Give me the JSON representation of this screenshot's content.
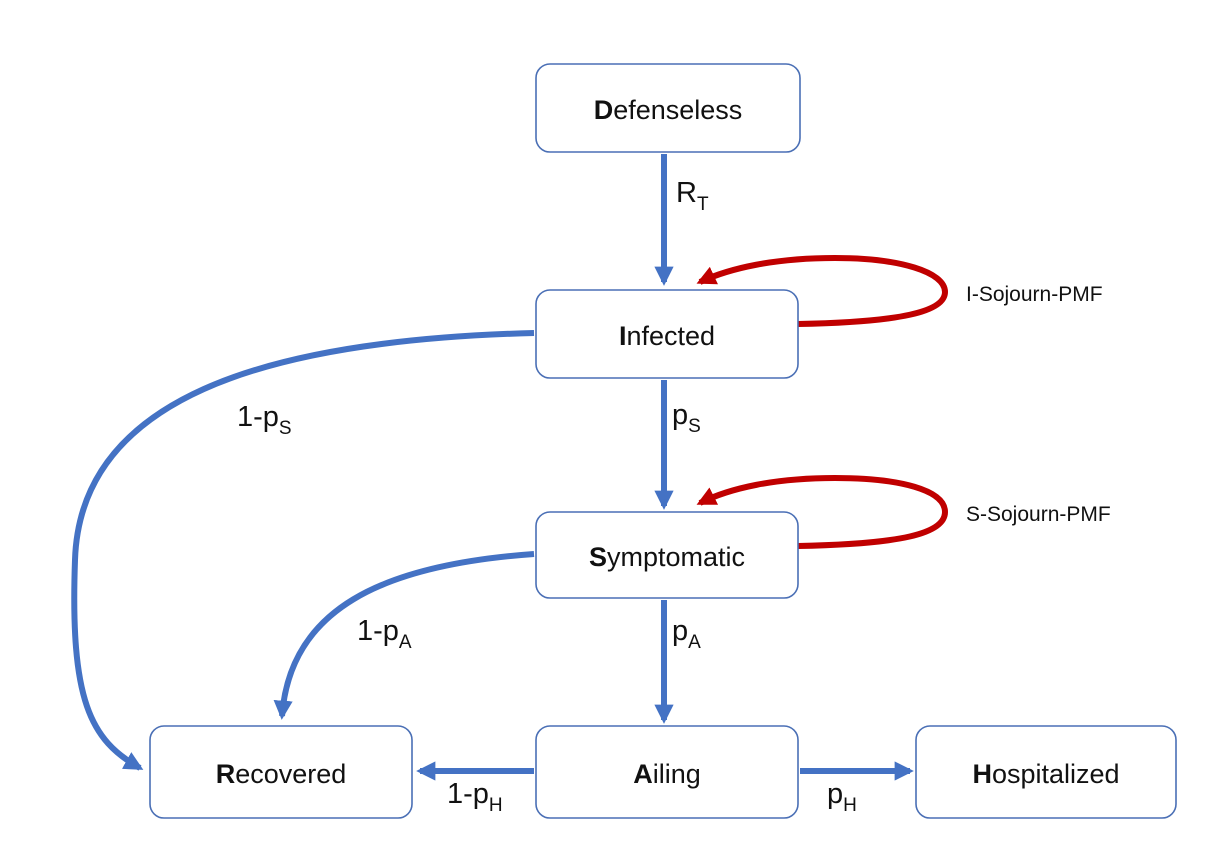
{
  "nodes": {
    "defenseless": {
      "initial": "D",
      "rest": "efenseless"
    },
    "infected": {
      "initial": "I",
      "rest": "nfected"
    },
    "symptomatic": {
      "initial": "S",
      "rest": "ymptomatic"
    },
    "recovered": {
      "initial": "R",
      "rest": "ecovered"
    },
    "ailing": {
      "initial": "A",
      "rest": "iling"
    },
    "hospitalized": {
      "initial": "H",
      "rest": "ospitalized"
    }
  },
  "edges": {
    "d_to_i": {
      "base": "R",
      "sub": "T"
    },
    "i_to_s": {
      "base": "p",
      "sub": "S"
    },
    "i_to_r": {
      "base": "1-p",
      "sub": "S"
    },
    "s_to_a": {
      "base": "p",
      "sub": "A"
    },
    "s_to_r": {
      "base": "1-p",
      "sub": "A"
    },
    "a_to_r": {
      "base": "1-p",
      "sub": "H"
    },
    "a_to_h": {
      "base": "p",
      "sub": "H"
    }
  },
  "loops": {
    "infected": "I-Sojourn-PMF",
    "symptomatic": "S-Sojourn-PMF"
  },
  "colors": {
    "transition_arrow": "#4472c4",
    "sojourn_arrow": "#c00000",
    "node_border": "#4a6fb5"
  }
}
